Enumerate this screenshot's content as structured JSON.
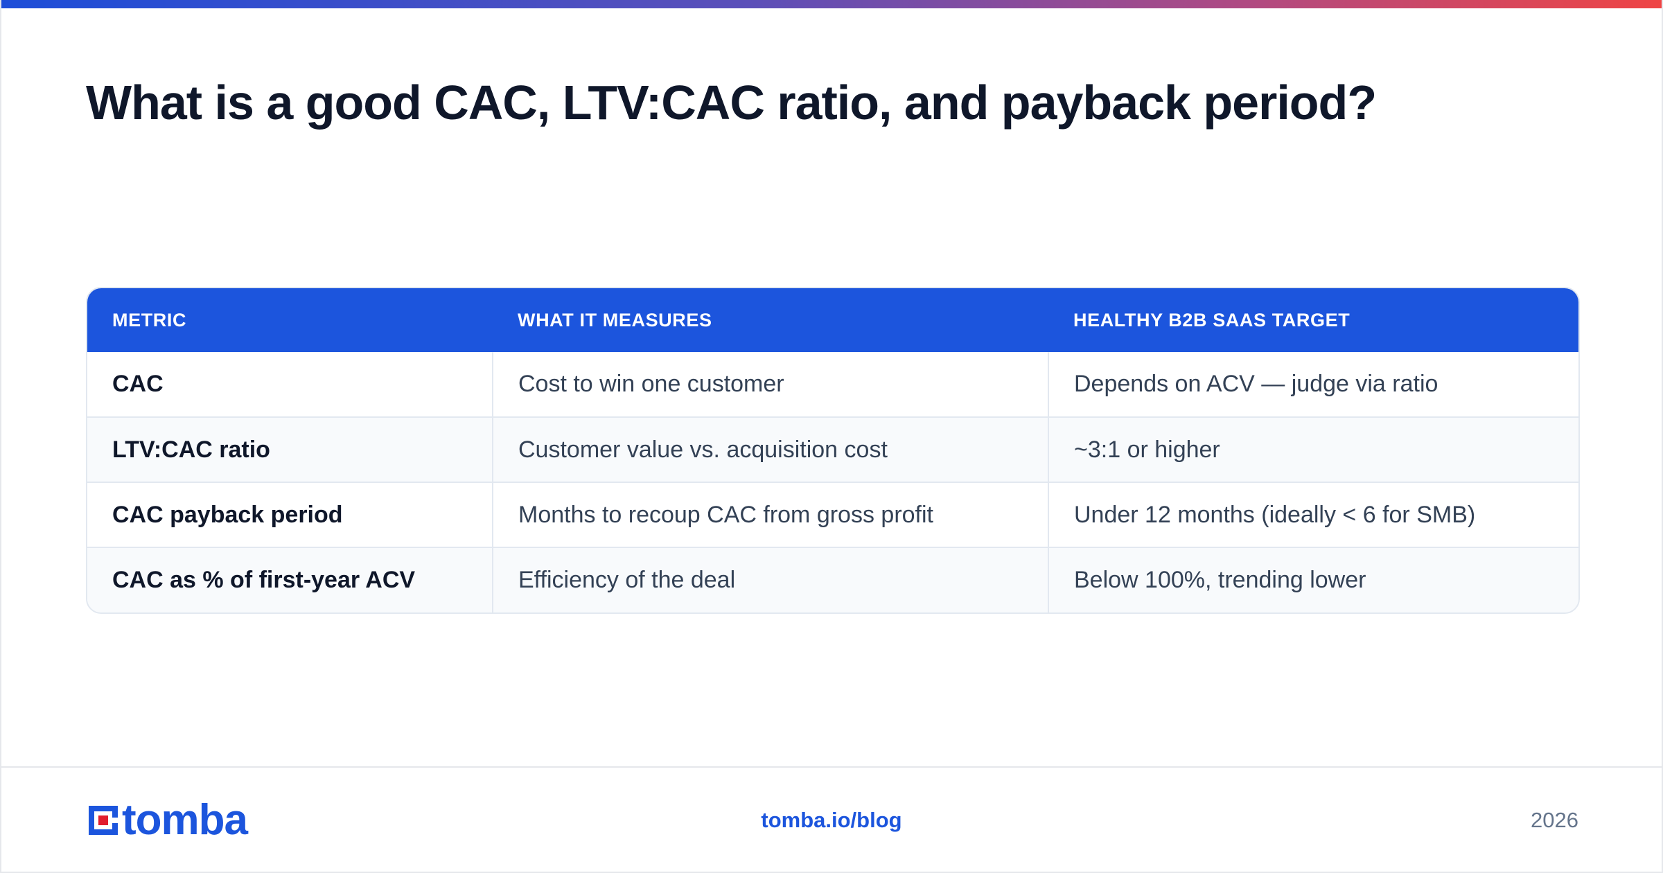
{
  "page": {
    "title": "What is a good CAC, LTV:CAC ratio, and payback period?"
  },
  "table": {
    "headers": [
      "METRIC",
      "WHAT IT MEASURES",
      "HEALTHY B2B SAAS TARGET"
    ],
    "rows": [
      [
        "CAC",
        "Cost to win one customer",
        "Depends on ACV — judge via ratio"
      ],
      [
        "LTV:CAC ratio",
        "Customer value vs. acquisition cost",
        "~3:1 or higher"
      ],
      [
        "CAC payback period",
        "Months to recoup CAC from gross profit",
        "Under 12 months (ideally < 6 for SMB)"
      ],
      [
        "CAC as % of first-year ACV",
        "Efficiency of the deal",
        "Below 100%, trending lower"
      ]
    ]
  },
  "footer": {
    "logo_text": "tomba",
    "link": "tomba.io/blog",
    "year": "2026"
  },
  "colors": {
    "brand_blue": "#1c55dd",
    "logo_red": "#e11d2e",
    "title": "#0f172a"
  },
  "icons": {
    "logo": "tomba-logo-icon"
  }
}
